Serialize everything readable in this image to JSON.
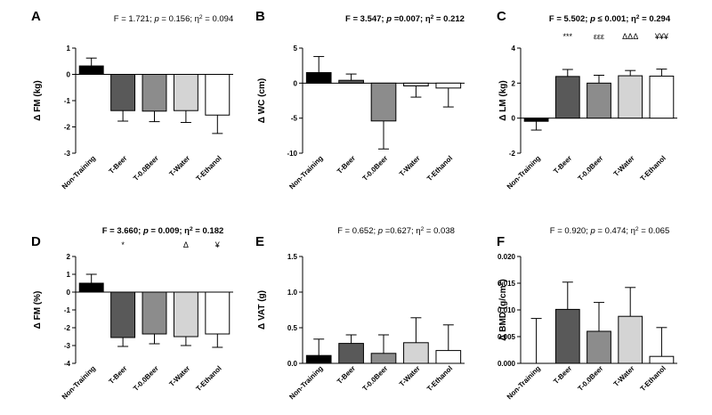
{
  "chart_data": [
    {
      "type": "bar",
      "letter": "A",
      "stat": "F = 1.721; p = 0.156; η² = 0.094",
      "stat_bold": false,
      "ylabel": "Δ FM (kg)",
      "categories": [
        "Non-Training",
        "T-Beer",
        "T-0.0Beer",
        "T-Water",
        "T-Ethanol"
      ],
      "values": [
        0.32,
        -1.38,
        -1.4,
        -1.38,
        -1.55
      ],
      "errors": [
        0.3,
        0.4,
        0.4,
        0.45,
        0.7
      ],
      "colors": [
        "#000000",
        "#595959",
        "#8c8c8c",
        "#d4d4d4",
        "#ffffff"
      ],
      "ylim": [
        -3,
        1
      ],
      "yticks": [
        "1",
        "0",
        "-1",
        "-2",
        "-3"
      ],
      "annotations": [
        "",
        "",
        "",
        "",
        ""
      ]
    },
    {
      "type": "bar",
      "letter": "B",
      "stat": "F = 3.547; p =0.007; η² = 0.212",
      "stat_bold": true,
      "ylabel": "Δ WC (cm)",
      "categories": [
        "Non-Training",
        "T-Beer",
        "T-0.0Beer",
        "T-Water",
        "T-Ethanol"
      ],
      "values": [
        1.5,
        0.4,
        -5.4,
        -0.4,
        -0.7
      ],
      "errors": [
        2.3,
        0.9,
        4.0,
        1.6,
        2.7
      ],
      "colors": [
        "#000000",
        "#595959",
        "#8c8c8c",
        "#d4d4d4",
        "#ffffff"
      ],
      "ylim": [
        -10,
        5
      ],
      "yticks": [
        "5",
        "0",
        "-5",
        "-10"
      ],
      "annotations": [
        "",
        "",
        "",
        "",
        ""
      ]
    },
    {
      "type": "bar",
      "letter": "C",
      "stat": "F = 5.502; p ≤ 0.001; η² = 0.294",
      "stat_bold": true,
      "ylabel": "Δ LM (kg)",
      "categories": [
        "Non-Training",
        "T-Beer",
        "T-0.0Beer",
        "T-Water",
        "T-Ethanol"
      ],
      "values": [
        -0.18,
        2.38,
        2.0,
        2.42,
        2.4
      ],
      "errors": [
        0.5,
        0.4,
        0.45,
        0.3,
        0.4
      ],
      "colors": [
        "#000000",
        "#595959",
        "#8c8c8c",
        "#d4d4d4",
        "#ffffff"
      ],
      "ylim": [
        -2,
        4
      ],
      "yticks": [
        "4",
        "2",
        "0",
        "-2"
      ],
      "annotations": [
        "",
        "***",
        "εεε",
        "ΔΔΔ",
        "¥¥¥"
      ]
    },
    {
      "type": "bar",
      "letter": "D",
      "stat": "F = 3.660; p = 0.009; η² = 0.182",
      "stat_bold": true,
      "ylabel": "Δ FM (%)",
      "categories": [
        "Non-Training",
        "T-Beer",
        "T-0.0Beer",
        "T-Water",
        "T-Ethanol"
      ],
      "values": [
        0.5,
        -2.55,
        -2.35,
        -2.5,
        -2.35
      ],
      "errors": [
        0.5,
        0.5,
        0.55,
        0.5,
        0.75
      ],
      "colors": [
        "#000000",
        "#595959",
        "#8c8c8c",
        "#d4d4d4",
        "#ffffff"
      ],
      "ylim": [
        -4,
        2
      ],
      "yticks": [
        "2",
        "1",
        "0",
        "-1",
        "-2",
        "-3",
        "-4"
      ],
      "annotations": [
        "",
        "*",
        "",
        "Δ",
        "¥"
      ]
    },
    {
      "type": "bar",
      "letter": "E",
      "stat": "F = 0.652; p =0.627; η² = 0.038",
      "stat_bold": false,
      "ylabel": "Δ VAT (g)",
      "categories": [
        "Non-Training",
        "T-Beer",
        "T-0.0Beer",
        "T-Water",
        "T-Ethanol"
      ],
      "values": [
        0.11,
        0.28,
        0.14,
        0.29,
        0.18
      ],
      "errors": [
        0.23,
        0.12,
        0.26,
        0.35,
        0.36
      ],
      "colors": [
        "#000000",
        "#595959",
        "#8c8c8c",
        "#d4d4d4",
        "#ffffff"
      ],
      "ylim": [
        0,
        1.5
      ],
      "yticks": [
        "1.5",
        "1.0",
        "0.5",
        "0.0"
      ],
      "annotations": [
        "",
        "",
        "",
        "",
        ""
      ]
    },
    {
      "type": "bar",
      "letter": "F",
      "stat": "F = 0.920; p = 0.474; η² = 0.065",
      "stat_bold": false,
      "ylabel": "Δ BMD (g/cm²)",
      "categories": [
        "Non-Training",
        "T-Beer",
        "T-0.0Beer",
        "T-Water",
        "T-Ethanol"
      ],
      "values": [
        0.0,
        0.0101,
        0.006,
        0.0088,
        0.0013
      ],
      "errors": [
        0.0084,
        0.0051,
        0.0054,
        0.0054,
        0.0054
      ],
      "colors": [
        "#000000",
        "#595959",
        "#8c8c8c",
        "#d4d4d4",
        "#ffffff"
      ],
      "ylim": [
        0,
        0.02
      ],
      "yticks": [
        "0.020",
        "0.015",
        "0.010",
        "0.005",
        "0.000"
      ],
      "annotations": [
        "",
        "",
        "",
        "",
        ""
      ]
    }
  ]
}
